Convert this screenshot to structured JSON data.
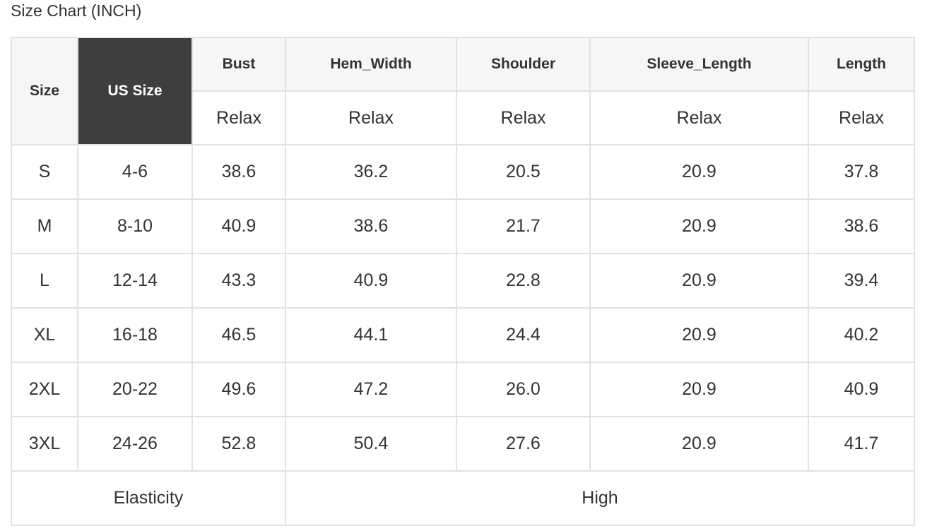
{
  "title": "Size Chart (INCH)",
  "table": {
    "headers": [
      "Size",
      "US Size",
      "Bust",
      "Hem_Width",
      "Shoulder",
      "Sleeve_Length",
      "Length"
    ],
    "subheaders": [
      "Relax",
      "Relax",
      "Relax",
      "Relax",
      "Relax"
    ],
    "rows": [
      [
        "S",
        "4-6",
        "38.6",
        "36.2",
        "20.5",
        "20.9",
        "37.8"
      ],
      [
        "M",
        "8-10",
        "40.9",
        "38.6",
        "21.7",
        "20.9",
        "38.6"
      ],
      [
        "L",
        "12-14",
        "43.3",
        "40.9",
        "22.8",
        "20.9",
        "39.4"
      ],
      [
        "XL",
        "16-18",
        "46.5",
        "44.1",
        "24.4",
        "20.9",
        "40.2"
      ],
      [
        "2XL",
        "20-22",
        "49.6",
        "47.2",
        "26.0",
        "20.9",
        "40.9"
      ],
      [
        "3XL",
        "24-26",
        "52.8",
        "50.4",
        "27.6",
        "20.9",
        "41.7"
      ]
    ],
    "footer": {
      "label": "Elasticity",
      "value": "High"
    }
  },
  "colors": {
    "highlight_header": "#3e3e3e",
    "header_bg": "#f6f6f6",
    "border": "#e2e2e2"
  }
}
